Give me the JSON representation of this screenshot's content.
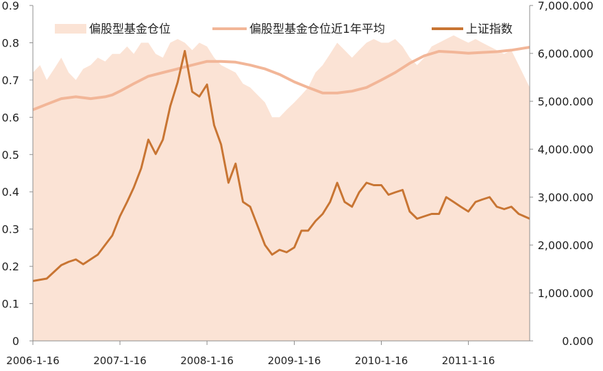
{
  "colors": {
    "area_fill": "#fbe3d5",
    "avg_line": "#f2b698",
    "index_line": "#c87533",
    "axis": "#8c8c8c",
    "text": "#222222"
  },
  "legend": {
    "items": [
      {
        "label": "偏股型基金仓位",
        "kind": "area"
      },
      {
        "label": "偏股型基金仓位近1年平均",
        "kind": "line-light"
      },
      {
        "label": "上证指数",
        "kind": "line-dark"
      }
    ]
  },
  "chart_data": {
    "type": "area+line",
    "title": "",
    "xlabel": "",
    "x_tick_labels": [
      "2006-1-16",
      "2007-1-16",
      "2008-1-16",
      "2009-1-16",
      "2010-1-16",
      "2011-1-16"
    ],
    "x_range": [
      "2006-01-16",
      "2011-09-30"
    ],
    "y_left": {
      "range": [
        0,
        0.9
      ],
      "ticks": [
        0,
        0.1,
        0.2,
        0.3,
        0.4,
        0.5,
        0.6,
        0.7,
        0.8,
        0.9
      ],
      "tick_labels": [
        "0",
        "0.1",
        "0.2",
        "0.3",
        "0.4",
        "0.5",
        "0.6",
        "0.7",
        "0.8",
        "0.9"
      ]
    },
    "y_right": {
      "range": [
        0,
        7000
      ],
      "ticks": [
        0,
        1000,
        2000,
        3000,
        4000,
        5000,
        6000,
        7000
      ],
      "tick_labels": [
        "0.000",
        "1,000.000",
        "2,000.000",
        "3,000.000",
        "4,000.000",
        "5,000.000",
        "6,000.000",
        "7,000.000"
      ]
    },
    "legend_position": "top",
    "grid": false,
    "series": [
      {
        "name": "偏股型基金仓位",
        "type": "area",
        "axis": "left",
        "points": [
          [
            "2006-01-16",
            0.72
          ],
          [
            "2006-02-15",
            0.74
          ],
          [
            "2006-03-15",
            0.7
          ],
          [
            "2006-04-15",
            0.73
          ],
          [
            "2006-05-15",
            0.76
          ],
          [
            "2006-06-15",
            0.72
          ],
          [
            "2006-07-15",
            0.7
          ],
          [
            "2006-08-15",
            0.73
          ],
          [
            "2006-09-15",
            0.74
          ],
          [
            "2006-10-15",
            0.76
          ],
          [
            "2006-11-15",
            0.75
          ],
          [
            "2006-12-15",
            0.77
          ],
          [
            "2007-01-16",
            0.77
          ],
          [
            "2007-02-15",
            0.79
          ],
          [
            "2007-03-15",
            0.77
          ],
          [
            "2007-04-15",
            0.8
          ],
          [
            "2007-05-15",
            0.8
          ],
          [
            "2007-06-15",
            0.77
          ],
          [
            "2007-07-15",
            0.76
          ],
          [
            "2007-08-15",
            0.8
          ],
          [
            "2007-09-15",
            0.81
          ],
          [
            "2007-10-15",
            0.8
          ],
          [
            "2007-11-15",
            0.78
          ],
          [
            "2007-12-15",
            0.8
          ],
          [
            "2008-01-16",
            0.79
          ],
          [
            "2008-02-15",
            0.76
          ],
          [
            "2008-03-15",
            0.74
          ],
          [
            "2008-04-15",
            0.73
          ],
          [
            "2008-05-15",
            0.72
          ],
          [
            "2008-06-15",
            0.69
          ],
          [
            "2008-07-15",
            0.68
          ],
          [
            "2008-08-15",
            0.66
          ],
          [
            "2008-09-15",
            0.64
          ],
          [
            "2008-10-15",
            0.6
          ],
          [
            "2008-11-15",
            0.6
          ],
          [
            "2008-12-15",
            0.62
          ],
          [
            "2009-01-16",
            0.64
          ],
          [
            "2009-02-15",
            0.66
          ],
          [
            "2009-03-15",
            0.68
          ],
          [
            "2009-04-15",
            0.72
          ],
          [
            "2009-05-15",
            0.74
          ],
          [
            "2009-06-15",
            0.77
          ],
          [
            "2009-07-15",
            0.8
          ],
          [
            "2009-08-15",
            0.78
          ],
          [
            "2009-09-15",
            0.76
          ],
          [
            "2009-10-15",
            0.78
          ],
          [
            "2009-11-15",
            0.8
          ],
          [
            "2009-12-15",
            0.81
          ],
          [
            "2010-01-16",
            0.8
          ],
          [
            "2010-02-15",
            0.8
          ],
          [
            "2010-03-15",
            0.81
          ],
          [
            "2010-04-15",
            0.79
          ],
          [
            "2010-05-15",
            0.76
          ],
          [
            "2010-06-15",
            0.74
          ],
          [
            "2010-07-15",
            0.76
          ],
          [
            "2010-08-15",
            0.79
          ],
          [
            "2010-09-15",
            0.8
          ],
          [
            "2010-10-15",
            0.81
          ],
          [
            "2010-11-15",
            0.82
          ],
          [
            "2010-12-15",
            0.81
          ],
          [
            "2011-01-16",
            0.8
          ],
          [
            "2011-02-15",
            0.81
          ],
          [
            "2011-03-15",
            0.8
          ],
          [
            "2011-04-15",
            0.79
          ],
          [
            "2011-05-15",
            0.78
          ],
          [
            "2011-06-15",
            0.77
          ],
          [
            "2011-07-15",
            0.78
          ],
          [
            "2011-08-15",
            0.74
          ],
          [
            "2011-09-30",
            0.68
          ]
        ]
      },
      {
        "name": "偏股型基金仓位近1年平均",
        "type": "line",
        "axis": "left",
        "points": [
          [
            "2006-01-16",
            0.62
          ],
          [
            "2006-03-15",
            0.635
          ],
          [
            "2006-05-15",
            0.65
          ],
          [
            "2006-07-15",
            0.655
          ],
          [
            "2006-09-15",
            0.65
          ],
          [
            "2006-11-15",
            0.655
          ],
          [
            "2006-12-15",
            0.66
          ],
          [
            "2007-01-16",
            0.67
          ],
          [
            "2007-03-15",
            0.69
          ],
          [
            "2007-05-15",
            0.71
          ],
          [
            "2007-07-15",
            0.72
          ],
          [
            "2007-09-15",
            0.73
          ],
          [
            "2007-11-15",
            0.74
          ],
          [
            "2008-01-16",
            0.75
          ],
          [
            "2008-03-15",
            0.75
          ],
          [
            "2008-05-15",
            0.748
          ],
          [
            "2008-07-15",
            0.74
          ],
          [
            "2008-09-15",
            0.73
          ],
          [
            "2008-11-15",
            0.715
          ],
          [
            "2009-01-16",
            0.695
          ],
          [
            "2009-03-15",
            0.68
          ],
          [
            "2009-05-15",
            0.665
          ],
          [
            "2009-07-15",
            0.665
          ],
          [
            "2009-09-15",
            0.67
          ],
          [
            "2009-11-15",
            0.68
          ],
          [
            "2010-01-16",
            0.7
          ],
          [
            "2010-03-15",
            0.72
          ],
          [
            "2010-05-15",
            0.745
          ],
          [
            "2010-07-15",
            0.765
          ],
          [
            "2010-09-15",
            0.777
          ],
          [
            "2010-11-15",
            0.775
          ],
          [
            "2011-01-16",
            0.772
          ],
          [
            "2011-03-15",
            0.774
          ],
          [
            "2011-05-15",
            0.776
          ],
          [
            "2011-07-15",
            0.78
          ],
          [
            "2011-09-30",
            0.788
          ]
        ]
      },
      {
        "name": "上证指数",
        "type": "line",
        "axis": "right",
        "points": [
          [
            "2006-01-16",
            1250
          ],
          [
            "2006-03-15",
            1300
          ],
          [
            "2006-05-15",
            1580
          ],
          [
            "2006-06-15",
            1650
          ],
          [
            "2006-07-15",
            1700
          ],
          [
            "2006-08-15",
            1600
          ],
          [
            "2006-10-15",
            1800
          ],
          [
            "2006-12-15",
            2200
          ],
          [
            "2007-01-16",
            2600
          ],
          [
            "2007-02-15",
            2900
          ],
          [
            "2007-03-15",
            3200
          ],
          [
            "2007-04-15",
            3600
          ],
          [
            "2007-05-15",
            4200
          ],
          [
            "2007-06-15",
            3900
          ],
          [
            "2007-07-15",
            4200
          ],
          [
            "2007-08-15",
            4900
          ],
          [
            "2007-09-15",
            5400
          ],
          [
            "2007-10-15",
            6050
          ],
          [
            "2007-11-15",
            5200
          ],
          [
            "2007-12-15",
            5100
          ],
          [
            "2008-01-16",
            5350
          ],
          [
            "2008-02-15",
            4500
          ],
          [
            "2008-03-15",
            4100
          ],
          [
            "2008-04-15",
            3300
          ],
          [
            "2008-05-15",
            3700
          ],
          [
            "2008-06-15",
            2900
          ],
          [
            "2008-07-15",
            2800
          ],
          [
            "2008-08-15",
            2400
          ],
          [
            "2008-09-15",
            2000
          ],
          [
            "2008-10-15",
            1800
          ],
          [
            "2008-11-15",
            1900
          ],
          [
            "2008-12-15",
            1850
          ],
          [
            "2009-01-16",
            1950
          ],
          [
            "2009-02-15",
            2300
          ],
          [
            "2009-03-15",
            2300
          ],
          [
            "2009-04-15",
            2500
          ],
          [
            "2009-05-15",
            2650
          ],
          [
            "2009-06-15",
            2900
          ],
          [
            "2009-07-15",
            3300
          ],
          [
            "2009-08-15",
            2900
          ],
          [
            "2009-09-15",
            2800
          ],
          [
            "2009-10-15",
            3100
          ],
          [
            "2009-11-15",
            3300
          ],
          [
            "2009-12-15",
            3250
          ],
          [
            "2010-01-16",
            3250
          ],
          [
            "2010-02-15",
            3050
          ],
          [
            "2010-03-15",
            3100
          ],
          [
            "2010-04-15",
            3150
          ],
          [
            "2010-05-15",
            2700
          ],
          [
            "2010-06-15",
            2550
          ],
          [
            "2010-07-15",
            2600
          ],
          [
            "2010-08-15",
            2650
          ],
          [
            "2010-09-15",
            2650
          ],
          [
            "2010-10-15",
            3000
          ],
          [
            "2010-11-15",
            2900
          ],
          [
            "2010-12-15",
            2800
          ],
          [
            "2011-01-16",
            2700
          ],
          [
            "2011-02-15",
            2900
          ],
          [
            "2011-03-15",
            2950
          ],
          [
            "2011-04-15",
            3000
          ],
          [
            "2011-05-15",
            2800
          ],
          [
            "2011-06-15",
            2750
          ],
          [
            "2011-07-15",
            2800
          ],
          [
            "2011-08-15",
            2650
          ],
          [
            "2011-09-30",
            2550
          ]
        ]
      }
    ]
  }
}
